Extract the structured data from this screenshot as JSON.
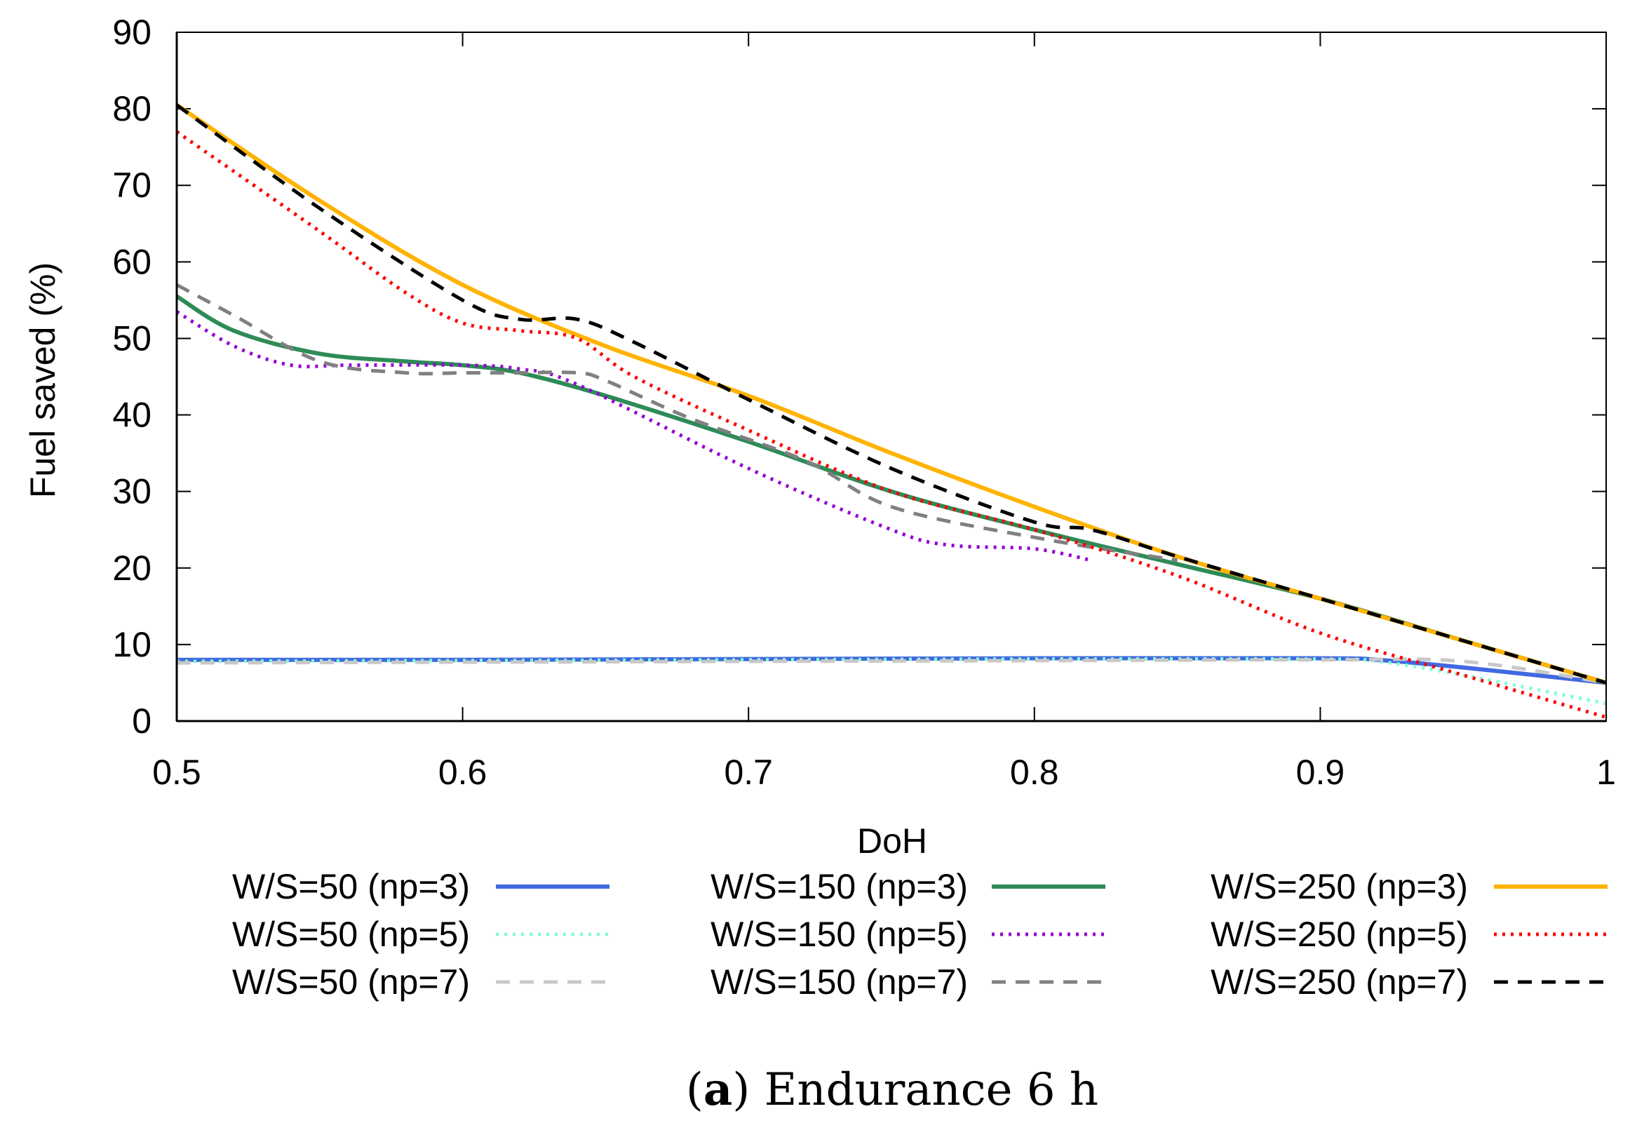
{
  "chart_data": {
    "type": "line",
    "caption_prefix": "(",
    "caption_label": "a",
    "caption_text": ") Endurance 6 h",
    "xlabel": "DoH",
    "ylabel": "Fuel saved (%)",
    "xlim": [
      0.5,
      1
    ],
    "ylim": [
      0,
      90
    ],
    "xticks": [
      0.5,
      0.6,
      0.7,
      0.8,
      0.9,
      1
    ],
    "xtick_labels": [
      "0.5",
      "0.6",
      "0.7",
      "0.8",
      "0.9",
      "1"
    ],
    "yticks": [
      0,
      10,
      20,
      30,
      40,
      50,
      60,
      70,
      80,
      90
    ],
    "ytick_labels": [
      "0",
      "10",
      "20",
      "30",
      "40",
      "50",
      "60",
      "70",
      "80",
      "90"
    ],
    "grid": false,
    "legend_position": "bottom",
    "series": [
      {
        "name": "W/S=50 (np=3)",
        "color": "#4169e1",
        "style": "solid",
        "x": [
          0.5,
          0.6,
          0.7,
          0.8,
          0.9,
          0.92,
          0.95,
          1.0
        ],
        "y": [
          8.0,
          8.0,
          8.1,
          8.2,
          8.2,
          8.0,
          7.0,
          5.0
        ]
      },
      {
        "name": "W/S=50 (np=5)",
        "color": "#7fffd4",
        "style": "dotted",
        "x": [
          0.5,
          0.6,
          0.7,
          0.8,
          0.9,
          0.92,
          0.95,
          1.0
        ],
        "y": [
          7.8,
          7.9,
          8.0,
          8.1,
          8.1,
          7.8,
          6.0,
          2.3
        ]
      },
      {
        "name": "W/S=50 (np=7)",
        "color": "#c8c8c8",
        "style": "dashed",
        "x": [
          0.5,
          0.6,
          0.7,
          0.8,
          0.9,
          0.95,
          1.0
        ],
        "y": [
          7.6,
          7.7,
          7.8,
          7.9,
          8.0,
          7.8,
          5.0
        ]
      },
      {
        "name": "W/S=150 (np=3)",
        "color": "#2e8b57",
        "style": "solid",
        "x": [
          0.5,
          0.52,
          0.55,
          0.58,
          0.6,
          0.62,
          0.65,
          0.7,
          0.75,
          0.8,
          0.85,
          0.9,
          0.95,
          1.0
        ],
        "y": [
          55.5,
          51.0,
          48.0,
          47.0,
          46.5,
          45.5,
          42.5,
          36.5,
          30.0,
          25.0,
          20.5,
          16.0,
          10.5,
          5.0
        ]
      },
      {
        "name": "W/S=150 (np=5)",
        "color": "#9400d3",
        "style": "dotted",
        "x": [
          0.5,
          0.52,
          0.54,
          0.56,
          0.6,
          0.62,
          0.64,
          0.7,
          0.75,
          0.77,
          0.8,
          0.82
        ],
        "y": [
          53.5,
          49.0,
          46.5,
          46.5,
          46.5,
          46.0,
          44.0,
          33.0,
          25.0,
          23.0,
          22.5,
          21.0
        ]
      },
      {
        "name": "W/S=150 (np=7)",
        "color": "#808080",
        "style": "dashed",
        "x": [
          0.5,
          0.52,
          0.55,
          0.58,
          0.6,
          0.62,
          0.64,
          0.65,
          0.68,
          0.72,
          0.75,
          0.8,
          0.85
        ],
        "y": [
          57.0,
          53.0,
          47.0,
          45.5,
          45.5,
          45.5,
          45.5,
          44.5,
          39.5,
          34.0,
          28.0,
          24.0,
          21.0
        ]
      },
      {
        "name": "W/S=250 (np=3)",
        "color": "#ffb300",
        "style": "solid",
        "x": [
          0.5,
          0.55,
          0.6,
          0.65,
          0.7,
          0.75,
          0.8,
          0.85,
          0.9,
          0.95,
          1.0
        ],
        "y": [
          80.5,
          68.0,
          57.0,
          49.0,
          42.5,
          35.0,
          28.0,
          21.5,
          16.0,
          10.5,
          5.0
        ]
      },
      {
        "name": "W/S=250 (np=5)",
        "color": "#ff0000",
        "style": "dotted",
        "x": [
          0.5,
          0.55,
          0.58,
          0.6,
          0.62,
          0.64,
          0.66,
          0.7,
          0.75,
          0.8,
          0.85,
          0.9,
          0.95,
          1.0
        ],
        "y": [
          77.0,
          64.0,
          56.0,
          52.0,
          51.0,
          50.0,
          45.0,
          38.0,
          30.0,
          25.0,
          19.0,
          11.5,
          6.0,
          0.5
        ]
      },
      {
        "name": "W/S=250 (np=7)",
        "color": "#000000",
        "style": "dashed",
        "x": [
          0.5,
          0.55,
          0.6,
          0.62,
          0.64,
          0.66,
          0.7,
          0.75,
          0.8,
          0.82,
          0.85,
          0.9,
          0.95,
          1.0
        ],
        "y": [
          80.5,
          67.0,
          55.0,
          52.5,
          52.5,
          49.5,
          42.0,
          33.0,
          26.0,
          25.0,
          21.5,
          16.0,
          10.5,
          5.0
        ]
      }
    ]
  }
}
